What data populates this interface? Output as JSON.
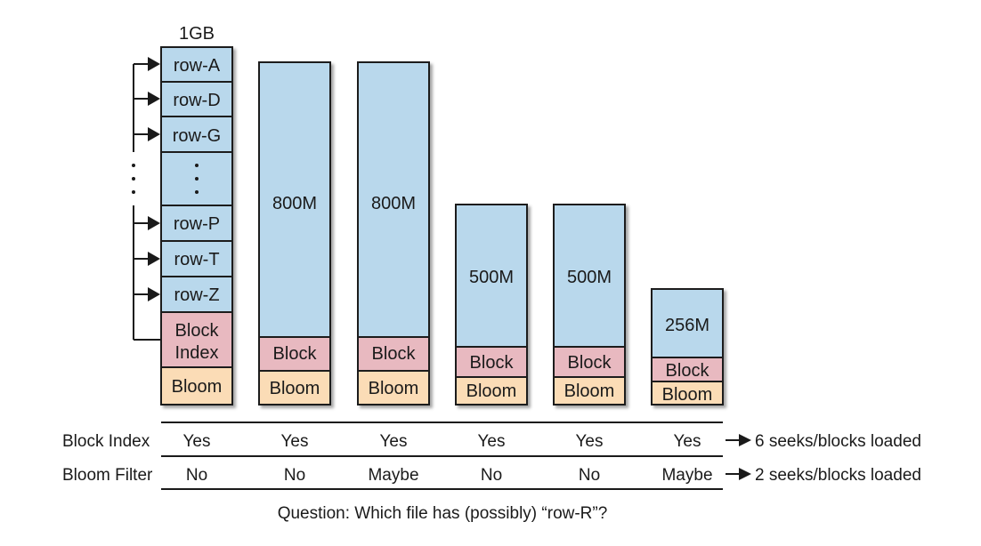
{
  "top_label": "1GB",
  "first_file": {
    "rows": [
      "row-A",
      "row-D",
      "row-G",
      ":",
      "row-P",
      "row-T",
      "row-Z"
    ],
    "block_label": [
      "Block",
      "Index"
    ],
    "bloom_label": "Bloom"
  },
  "files": [
    {
      "size": "800M",
      "block_label": "Block",
      "bloom_label": "Bloom"
    },
    {
      "size": "800M",
      "block_label": "Block",
      "bloom_label": "Bloom"
    },
    {
      "size": "500M",
      "block_label": "Block",
      "bloom_label": "Bloom"
    },
    {
      "size": "500M",
      "block_label": "Block",
      "bloom_label": "Bloom"
    },
    {
      "size": "256M",
      "block_label": "Block",
      "bloom_label": "Bloom"
    }
  ],
  "table": {
    "rows": [
      {
        "header": "Block Index",
        "values": [
          "Yes",
          "Yes",
          "Yes",
          "Yes",
          "Yes",
          "Yes"
        ],
        "result": "6 seeks/blocks loaded"
      },
      {
        "header": "Bloom Filter",
        "values": [
          "No",
          "No",
          "Maybe",
          "No",
          "No",
          "Maybe"
        ],
        "result": "2 seeks/blocks loaded"
      }
    ]
  },
  "question": "Question: Which file has (possibly) “row-R”?",
  "colors": {
    "data_fill": "#b9d8ec",
    "block_fill": "#e8b9c0",
    "bloom_fill": "#fbdcb6",
    "stroke": "#1a1a1a"
  }
}
